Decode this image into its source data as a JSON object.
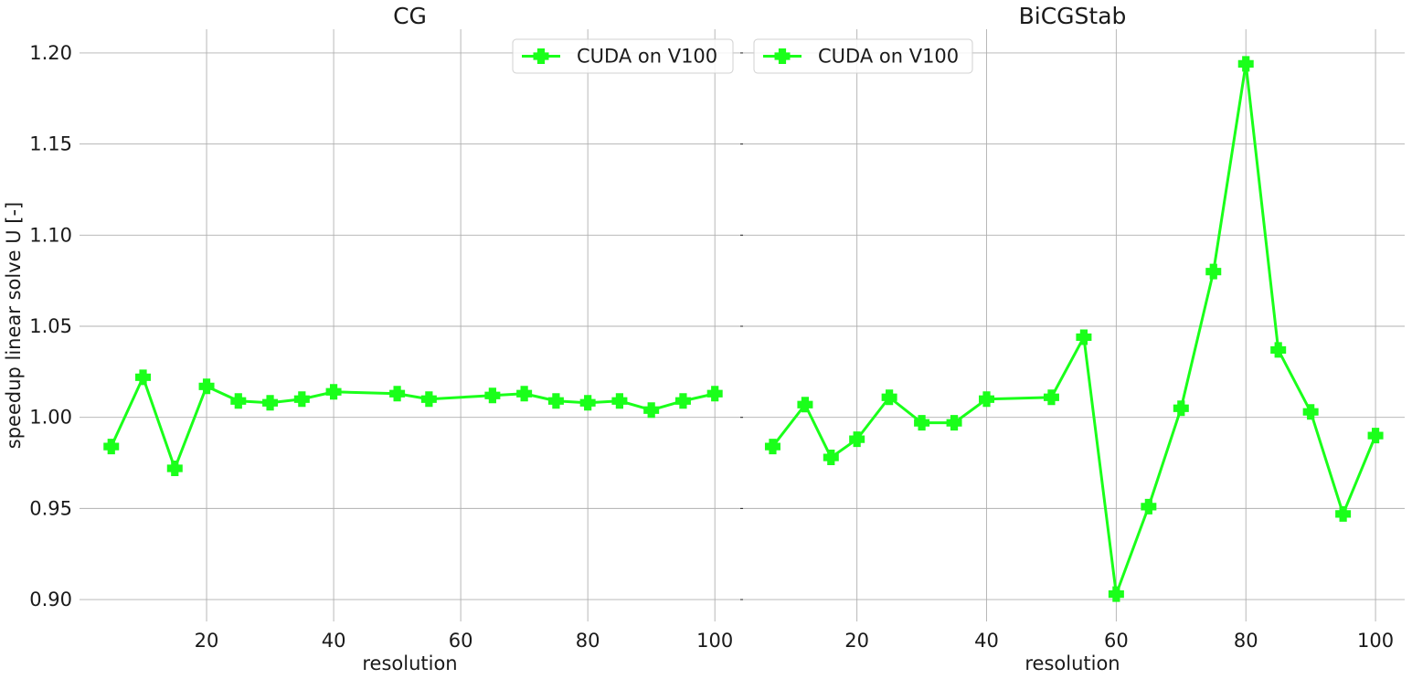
{
  "figure": {
    "ylabel": "speedup linear solve U [-]"
  },
  "chart_data": [
    {
      "type": "line",
      "title": "CG",
      "xlabel": "resolution",
      "ylabel": "speedup linear solve U [-]",
      "xlim": [
        0,
        104
      ],
      "ylim": [
        0.888,
        1.213
      ],
      "xticks": [
        20,
        40,
        60,
        80,
        100
      ],
      "yticks": [
        0.9,
        0.95,
        1.0,
        1.05,
        1.1,
        1.15,
        1.2
      ],
      "grid": true,
      "legend_position": "top-right",
      "color": "#1aff1a",
      "series": [
        {
          "name": "CUDA on V100",
          "x": [
            5,
            10,
            15,
            20,
            25,
            30,
            35,
            40,
            50,
            55,
            65,
            70,
            75,
            80,
            85,
            90,
            95,
            100
          ],
          "y": [
            0.984,
            1.022,
            0.972,
            1.017,
            1.009,
            1.008,
            1.01,
            1.014,
            1.013,
            1.01,
            1.012,
            1.013,
            1.009,
            1.008,
            1.009,
            1.004,
            1.009,
            1.013
          ]
        }
      ]
    },
    {
      "type": "line",
      "title": "BiCGStab",
      "xlabel": "resolution",
      "xlim": [
        2,
        104.5
      ],
      "ylim": [
        0.888,
        1.213
      ],
      "xticks": [
        20,
        40,
        60,
        80,
        100
      ],
      "yticks": [
        0.9,
        0.95,
        1.0,
        1.05,
        1.1,
        1.15,
        1.2
      ],
      "grid": true,
      "legend_position": "top-left",
      "color": "#1aff1a",
      "series": [
        {
          "name": "CUDA on V100",
          "x": [
            7,
            12,
            16,
            20,
            25,
            30,
            35,
            40,
            50,
            55,
            60,
            65,
            70,
            75,
            80,
            85,
            90,
            95,
            100
          ],
          "y": [
            0.984,
            1.007,
            0.978,
            0.988,
            1.011,
            0.997,
            0.997,
            1.01,
            1.011,
            1.044,
            0.903,
            0.951,
            1.005,
            1.08,
            1.194,
            1.037,
            1.003,
            0.947,
            0.99
          ]
        }
      ]
    }
  ]
}
